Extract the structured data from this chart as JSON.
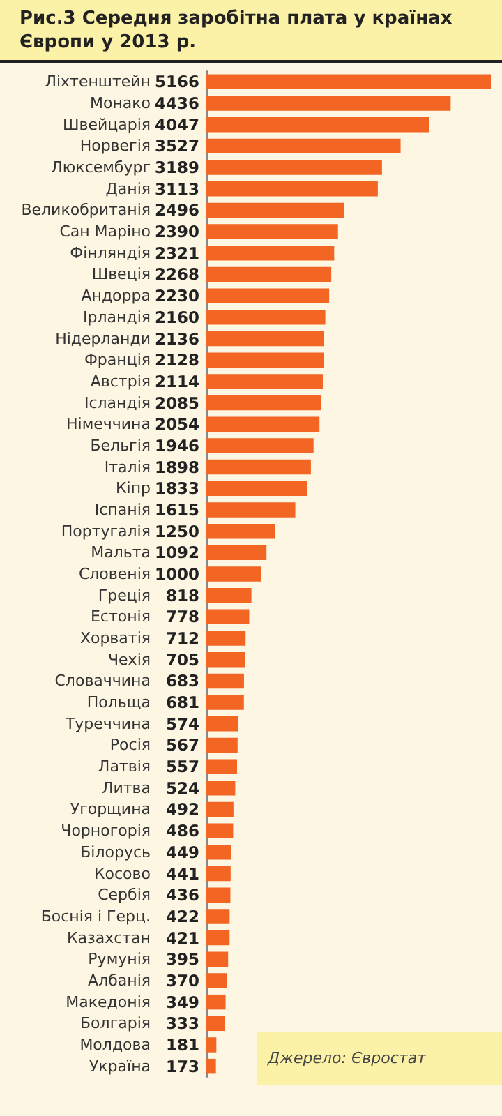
{
  "chart_data": {
    "type": "bar",
    "orientation": "horizontal",
    "title": "Рис.3 Середня заробітна плата у країнах Європи у 2013 р.",
    "categories": [
      "Ліхтенштейн",
      "Монако",
      "Швейцарія",
      "Норвегія",
      "Люксембург",
      "Данія",
      "Великобританія",
      "Сан Маріно",
      "Фінляндія",
      "Швеція",
      "Андорра",
      "Ірландія",
      "Нідерланди",
      "Франція",
      "Австрія",
      "Ісландія",
      "Німеччина",
      "Бельгія",
      "Італія",
      "Кіпр",
      "Іспанія",
      "Португалія",
      "Мальта",
      "Словенія",
      "Греція",
      "Естонія",
      "Хорватія",
      "Чехія",
      "Словаччина",
      "Польща",
      "Туреччина",
      "Росія",
      "Латвія",
      "Литва",
      "Угорщина",
      "Чорногорія",
      "Білорусь",
      "Косово",
      "Сербія",
      "Боснія і Герц.",
      "Казахстан",
      "Румунія",
      "Албанія",
      "Македонія",
      "Болгарія",
      "Молдова",
      "Україна"
    ],
    "values": [
      5166,
      4436,
      4047,
      3527,
      3189,
      3113,
      2496,
      2390,
      2321,
      2268,
      2230,
      2160,
      2136,
      2128,
      2114,
      2085,
      2054,
      1946,
      1898,
      1833,
      1615,
      1250,
      1092,
      1000,
      818,
      778,
      712,
      705,
      683,
      681,
      574,
      567,
      557,
      524,
      492,
      486,
      449,
      441,
      436,
      422,
      421,
      395,
      370,
      349,
      333,
      181,
      173
    ],
    "color": "#f26522",
    "data_labels": true,
    "annotations": [
      "Джерело: Євростат"
    ]
  }
}
